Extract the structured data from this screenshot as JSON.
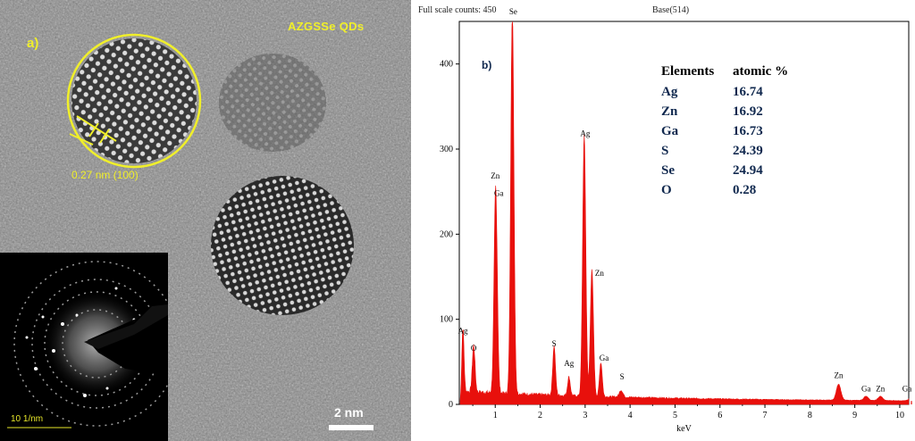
{
  "panel_a": {
    "label": "a)",
    "title": "AZGSSe QDs",
    "lattice_spacing": "0.27 nm (100)",
    "scale_bar": "2 nm",
    "saed_scale": "10 1/nm",
    "colors": {
      "annotation": "#f0ef2a",
      "background": "#8a8a8a"
    }
  },
  "panel_b": {
    "label": "b)",
    "full_scale": "Full scale counts: 450",
    "base": "Base(514)",
    "table": {
      "header": [
        "Elements",
        "atomic %"
      ],
      "rows": [
        [
          "Ag",
          "16.74"
        ],
        [
          "Zn",
          "16.92"
        ],
        [
          "Ga",
          "16.73"
        ],
        [
          "S",
          "24.39"
        ],
        [
          "Se",
          "24.94"
        ],
        [
          "O",
          "0.28"
        ]
      ]
    }
  },
  "chart_data": {
    "type": "area",
    "title": "",
    "xlabel": "keV",
    "ylabel": "",
    "xlim": [
      0.2,
      10.2
    ],
    "ylim": [
      0,
      450
    ],
    "xticks": [
      1,
      2,
      3,
      4,
      5,
      6,
      7,
      8,
      9,
      10
    ],
    "yticks": [
      0,
      100,
      200,
      300,
      400
    ],
    "color": "#e8100c",
    "baseline_counts": 12,
    "peaks": [
      {
        "x": 0.28,
        "y": 78,
        "w": 0.025
      },
      {
        "x": 0.52,
        "y": 55,
        "w": 0.03
      },
      {
        "x": 1.01,
        "y": 243,
        "w": 0.035
      },
      {
        "x": 1.38,
        "y": 448,
        "w": 0.035
      },
      {
        "x": 2.31,
        "y": 58,
        "w": 0.03
      },
      {
        "x": 2.64,
        "y": 22,
        "w": 0.03
      },
      {
        "x": 2.98,
        "y": 306,
        "w": 0.035
      },
      {
        "x": 3.15,
        "y": 148,
        "w": 0.035
      },
      {
        "x": 3.35,
        "y": 40,
        "w": 0.03
      },
      {
        "x": 3.8,
        "y": 8,
        "w": 0.04
      },
      {
        "x": 8.64,
        "y": 19,
        "w": 0.05
      },
      {
        "x": 9.25,
        "y": 5,
        "w": 0.05
      },
      {
        "x": 9.57,
        "y": 5,
        "w": 0.05
      },
      {
        "x": 10.26,
        "y": 4,
        "w": 0.05
      }
    ],
    "annotations": [
      {
        "text": "Ag",
        "x": 0.28,
        "y": 80
      },
      {
        "text": "O",
        "x": 0.52,
        "y": 60
      },
      {
        "text": "Zn",
        "x": 1.0,
        "y": 262
      },
      {
        "text": "Ga",
        "x": 1.08,
        "y": 242
      },
      {
        "text": "Se",
        "x": 1.4,
        "y": 455
      },
      {
        "text": "S",
        "x": 2.31,
        "y": 65
      },
      {
        "text": "Ag",
        "x": 2.64,
        "y": 42
      },
      {
        "text": "Ag",
        "x": 3.0,
        "y": 312
      },
      {
        "text": "Zn",
        "x": 3.32,
        "y": 148
      },
      {
        "text": "Ga",
        "x": 3.42,
        "y": 48
      },
      {
        "text": "S",
        "x": 3.82,
        "y": 26
      },
      {
        "text": "Zn",
        "x": 8.64,
        "y": 28
      },
      {
        "text": "Ga",
        "x": 9.25,
        "y": 12
      },
      {
        "text": "Zn",
        "x": 9.57,
        "y": 12
      },
      {
        "text": "Ga",
        "x": 10.16,
        "y": 12
      }
    ]
  }
}
